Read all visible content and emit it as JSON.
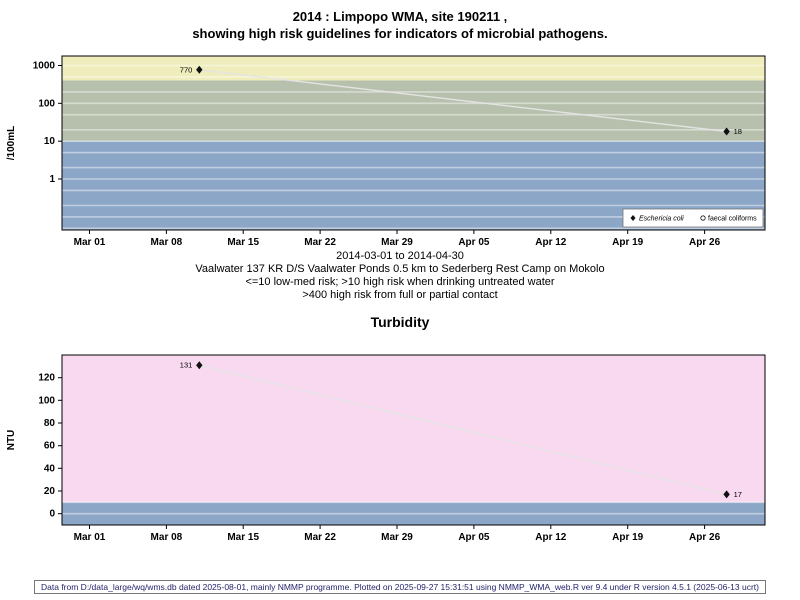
{
  "page": {
    "footer": "Data from D:/data_large/wq/wms.db dated 2025-08-01, mainly NMMP programme. Plotted on 2025-09-27 15:31:51 using NMMP_WMA_web.R ver 9.4 under R version 4.5.1 (2025-06-13 ucrt)"
  },
  "colors": {
    "band_high_contact": "#efedbb",
    "band_high_drinking": "#b6c0ac",
    "band_low_med_risk": "#8ca6c7",
    "band_turbidity_upper": "#f9d9f0",
    "connector_line": "#e4e4e4",
    "marker": "#111111"
  },
  "chart_data": [
    {
      "type": "scatter",
      "title_line1": "2014 : Limpopo WMA, site 190211 ,",
      "title_line2": "showing high risk guidelines for indicators of microbial pathogens.",
      "ylabel": "/100mL",
      "yscale": "log",
      "ylim": [
        0.045,
        1780
      ],
      "yticks": [
        1,
        10,
        100,
        1000
      ],
      "gridlines": [
        0.05,
        0.1,
        0.2,
        0.5,
        1,
        2,
        5,
        10,
        20,
        50,
        100,
        200,
        500,
        1000
      ],
      "xlim_days": [
        -2.5,
        61.5
      ],
      "x_tick_days": [
        0,
        7,
        14,
        21,
        28,
        35,
        42,
        49,
        56
      ],
      "x_tick_labels": [
        "Mar 01",
        "Mar 08",
        "Mar 15",
        "Mar 22",
        "Mar 29",
        "Apr 05",
        "Apr 12",
        "Apr 19",
        "Apr 26"
      ],
      "bands": [
        {
          "from": 400,
          "to": 1780,
          "color": "#efedbb"
        },
        {
          "from": 10,
          "to": 400,
          "color": "#b6c0ac"
        },
        {
          "from": 0.045,
          "to": 10,
          "color": "#8ca6c7"
        }
      ],
      "series": [
        {
          "name": "Eschericia coli",
          "marker": "filled-diamond",
          "points": [
            {
              "day": 10,
              "value": 770,
              "label": "770",
              "label_side": "left"
            },
            {
              "day": 58,
              "value": 18,
              "label": "18",
              "label_side": "right"
            }
          ]
        }
      ],
      "legend": [
        {
          "label": "Eschericia coli",
          "marker": "filled-diamond"
        },
        {
          "label": "faecal coliforms",
          "marker": "open-circle"
        }
      ],
      "caption_lines": [
        "2014-03-01 to 2014-04-30",
        "Vaalwater 137 KR D/S Vaalwater Ponds 0.5 km to Sederberg Rest Camp on Mokolo",
        "<=10 low-med risk; >10 high risk when drinking untreated water",
        ">400 high risk from full or partial contact"
      ]
    },
    {
      "type": "scatter",
      "title": "Turbidity",
      "ylabel": "NTU",
      "yscale": "linear",
      "ylim": [
        -10,
        140
      ],
      "yticks": [
        0,
        20,
        40,
        60,
        80,
        100,
        120
      ],
      "gridlines": [
        0,
        10
      ],
      "xlim_days": [
        -2.5,
        61.5
      ],
      "x_tick_days": [
        0,
        7,
        14,
        21,
        28,
        35,
        42,
        49,
        56
      ],
      "x_tick_labels": [
        "Mar 01",
        "Mar 08",
        "Mar 15",
        "Mar 22",
        "Mar 29",
        "Apr 05",
        "Apr 12",
        "Apr 19",
        "Apr 26"
      ],
      "bands": [
        {
          "from": 10,
          "to": 140,
          "color": "#f9d9f0"
        },
        {
          "from": -10,
          "to": 10,
          "color": "#8ca6c7"
        }
      ],
      "series": [
        {
          "name": "Turbidity",
          "marker": "filled-diamond",
          "points": [
            {
              "day": 10,
              "value": 131,
              "label": "131",
              "label_side": "left"
            },
            {
              "day": 58,
              "value": 17,
              "label": "17",
              "label_side": "right"
            }
          ]
        }
      ]
    }
  ]
}
